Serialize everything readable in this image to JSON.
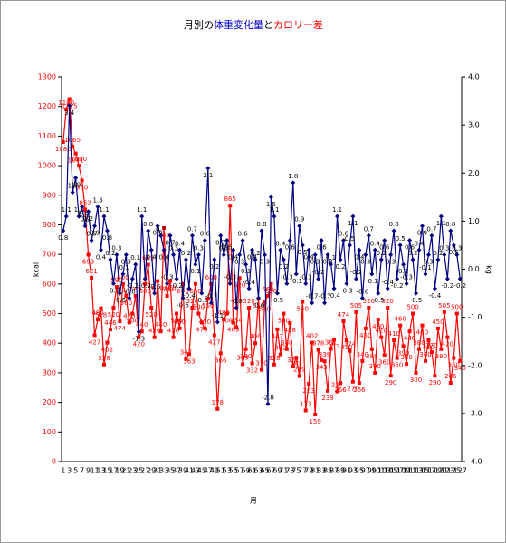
{
  "chart_data": {
    "type": "line",
    "title_segments": [
      {
        "text": "月別の",
        "color": "#000000"
      },
      {
        "text": "体重変化量",
        "color": "#0000cc"
      },
      {
        "text": "と",
        "color": "#000000"
      },
      {
        "text": "カロリー差",
        "color": "#ff0000"
      }
    ],
    "x_label": "月",
    "y_label": "kcal",
    "y2_label": "kg",
    "categories": [
      1,
      null,
      3,
      null,
      5,
      null,
      7,
      null,
      9,
      null,
      11,
      null,
      13,
      null,
      15,
      null,
      17,
      null,
      19,
      null,
      21,
      null,
      23,
      null,
      25,
      null,
      27,
      null,
      29,
      null,
      31,
      null,
      33,
      null,
      35,
      null,
      37,
      null,
      39,
      null,
      41,
      null,
      43,
      null,
      45,
      null,
      47,
      null,
      49,
      null,
      51,
      null,
      53,
      null,
      55,
      null,
      57,
      null,
      59,
      null,
      61,
      null,
      63,
      null,
      65,
      null,
      67,
      null,
      69,
      null,
      71,
      null,
      73,
      null,
      75,
      null,
      77,
      null,
      79,
      null,
      81,
      null,
      83,
      null,
      85,
      null,
      87,
      null,
      89,
      null,
      91,
      null,
      93,
      null,
      95,
      null,
      97,
      null,
      99,
      null,
      101,
      null,
      103,
      null,
      105,
      null,
      107,
      null,
      109,
      null,
      111,
      null,
      113,
      null,
      115,
      null,
      117,
      null,
      119,
      null,
      121,
      null,
      123,
      null,
      125,
      null,
      127
    ],
    "ylim": [
      0,
      1300
    ],
    "yticks": [
      0,
      100,
      200,
      300,
      400,
      500,
      600,
      700,
      800,
      900,
      1000,
      1100,
      1200,
      1300
    ],
    "ytick_color": "#ff0000",
    "y2lim": [
      -4,
      4
    ],
    "y2ticks": [
      {
        "value": -4,
        "label": "-4.0"
      },
      {
        "value": -3,
        "label": "-3.0"
      },
      {
        "value": -2,
        "label": "-2.0"
      },
      {
        "value": -1,
        "label": "-1.0"
      },
      {
        "value": 0,
        "label": "0.0"
      },
      {
        "value": 1,
        "label": "1.0"
      },
      {
        "value": 2,
        "label": "2.0"
      },
      {
        "value": 3,
        "label": "3.0"
      },
      {
        "value": 4,
        "label": "4.0"
      }
    ],
    "grid": false,
    "series": [
      {
        "name": "カロリー差",
        "color": "#ff0000",
        "marker": "square",
        "values": [
          1080,
          1190,
          1225,
          1065,
          1041,
          1000,
          950,
          852,
          699,
          621,
          427,
          480,
          518,
          328,
          402,
          446,
          520,
          590,
          474,
          600,
          560,
          470,
          500,
          560,
          420,
          440,
          600,
          665,
          520,
          420,
          610,
          440,
          789,
          560,
          610,
          420,
          500,
          450,
          600,
          347,
          363,
          520,
          600,
          500,
          470,
          450,
          550,
          600,
          427,
          178,
          366,
          480,
          500,
          865,
          469,
          454,
          620,
          329,
          380,
          520,
          332,
          400,
          550,
          310,
          540,
          560,
          600,
          328,
          447,
          362,
          500,
          380,
          468,
          321,
          351,
          289,
          540,
          173,
          263,
          402,
          159,
          378,
          343,
          339,
          239,
          381,
          413,
          237,
          266,
          474,
          410,
          374,
          270,
          505,
          266,
          340,
          450,
          520,
          380,
          300,
          480,
          420,
          360,
          520,
          290,
          410,
          350,
          460,
          390,
          330,
          440,
          500,
          300,
          380,
          460,
          340,
          410,
          370,
          290,
          450,
          380,
          505,
          420,
          266,
          350,
          500,
          340
        ]
      },
      {
        "name": "体重変化量",
        "color": "#000080",
        "marker": "diamond",
        "axis": "y2",
        "values": [
          0.8,
          1.1,
          3.4,
          1.6,
          1.9,
          1.1,
          1.3,
          0.9,
          1.2,
          0.6,
          0.9,
          1.3,
          0.4,
          1.1,
          0.8,
          0.2,
          -0.3,
          0.3,
          -0.5,
          -0.1,
          0.3,
          -0.6,
          -0.2,
          0.1,
          -1.3,
          1.1,
          -0.2,
          0.8,
          0.4,
          -0.5,
          0.9,
          0.7,
          0.4,
          -0.3,
          0.7,
          0.3,
          -0.2,
          0.4,
          -0.6,
          0.2,
          -0.4,
          0.7,
          0.1,
          0.3,
          -0.5,
          0.6,
          2.1,
          -0.7,
          0.2,
          -1.1,
          0.7,
          0.3,
          0.6,
          -0.3,
          0.4,
          -0.8,
          0.3,
          0.6,
          0.1,
          -0.4,
          0.4,
          0.2,
          -0.6,
          0.8,
          0.3,
          -2.8,
          1.5,
          1.1,
          -0.5,
          0.4,
          0.2,
          -0.3,
          0.6,
          1.8,
          -0.1,
          0.9,
          0.5,
          -0.3,
          0.4,
          -0.7,
          0.3,
          -0.2,
          0.6,
          -0.7,
          0.3,
          0.1,
          -0.4,
          1.1,
          0.2,
          0.6,
          -0.3,
          0.5,
          1.1,
          -0.2,
          0.4,
          -0.6,
          0.3,
          0.7,
          -0.1,
          0.4,
          -0.5,
          0.2,
          0.6,
          -0.4,
          0.3,
          0.8,
          -0.2,
          0.5,
          0.1,
          -0.3,
          0.6,
          0.2,
          -0.5,
          0.4,
          0.9,
          -0.1,
          0.3,
          0.7,
          -0.4,
          0.2,
          1.1,
          0.3,
          -0.2,
          0.8,
          0.5,
          0.3,
          -0.2
        ]
      }
    ]
  }
}
